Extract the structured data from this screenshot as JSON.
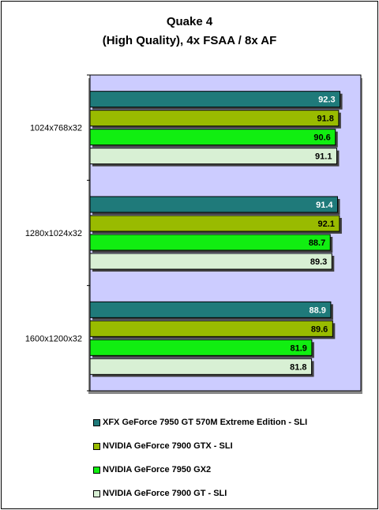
{
  "chart_data": {
    "type": "bar",
    "orientation": "horizontal",
    "title": [
      "Quake 4",
      "(High Quality), 4x FSAA / 8x AF"
    ],
    "categories": [
      "1024x768x32",
      "1280x1024x32",
      "1600x1200x32"
    ],
    "series": [
      {
        "name": "XFX GeForce 7950 GT 570M Extreme Edition - SLI",
        "color": "#1f7a7a",
        "label_color": "#ffffff",
        "values": [
          92.3,
          91.4,
          88.9
        ]
      },
      {
        "name": "NVIDIA GeForce 7900 GTX - SLI",
        "color": "#99bb00",
        "label_color": "#000000",
        "values": [
          91.8,
          92.1,
          89.6
        ]
      },
      {
        "name": "NVIDIA GeForce 7950 GX2",
        "color": "#11ee11",
        "label_color": "#000000",
        "values": [
          90.6,
          88.7,
          81.9
        ]
      },
      {
        "name": "NVIDIA GeForce 7900 GT - SLI",
        "color": "#d8f0d4",
        "label_color": "#000000",
        "values": [
          91.1,
          89.3,
          81.8
        ]
      }
    ],
    "xlim": [
      0,
      100
    ],
    "plot_background": "#ccccff",
    "grid": false,
    "legend_position": "bottom"
  }
}
